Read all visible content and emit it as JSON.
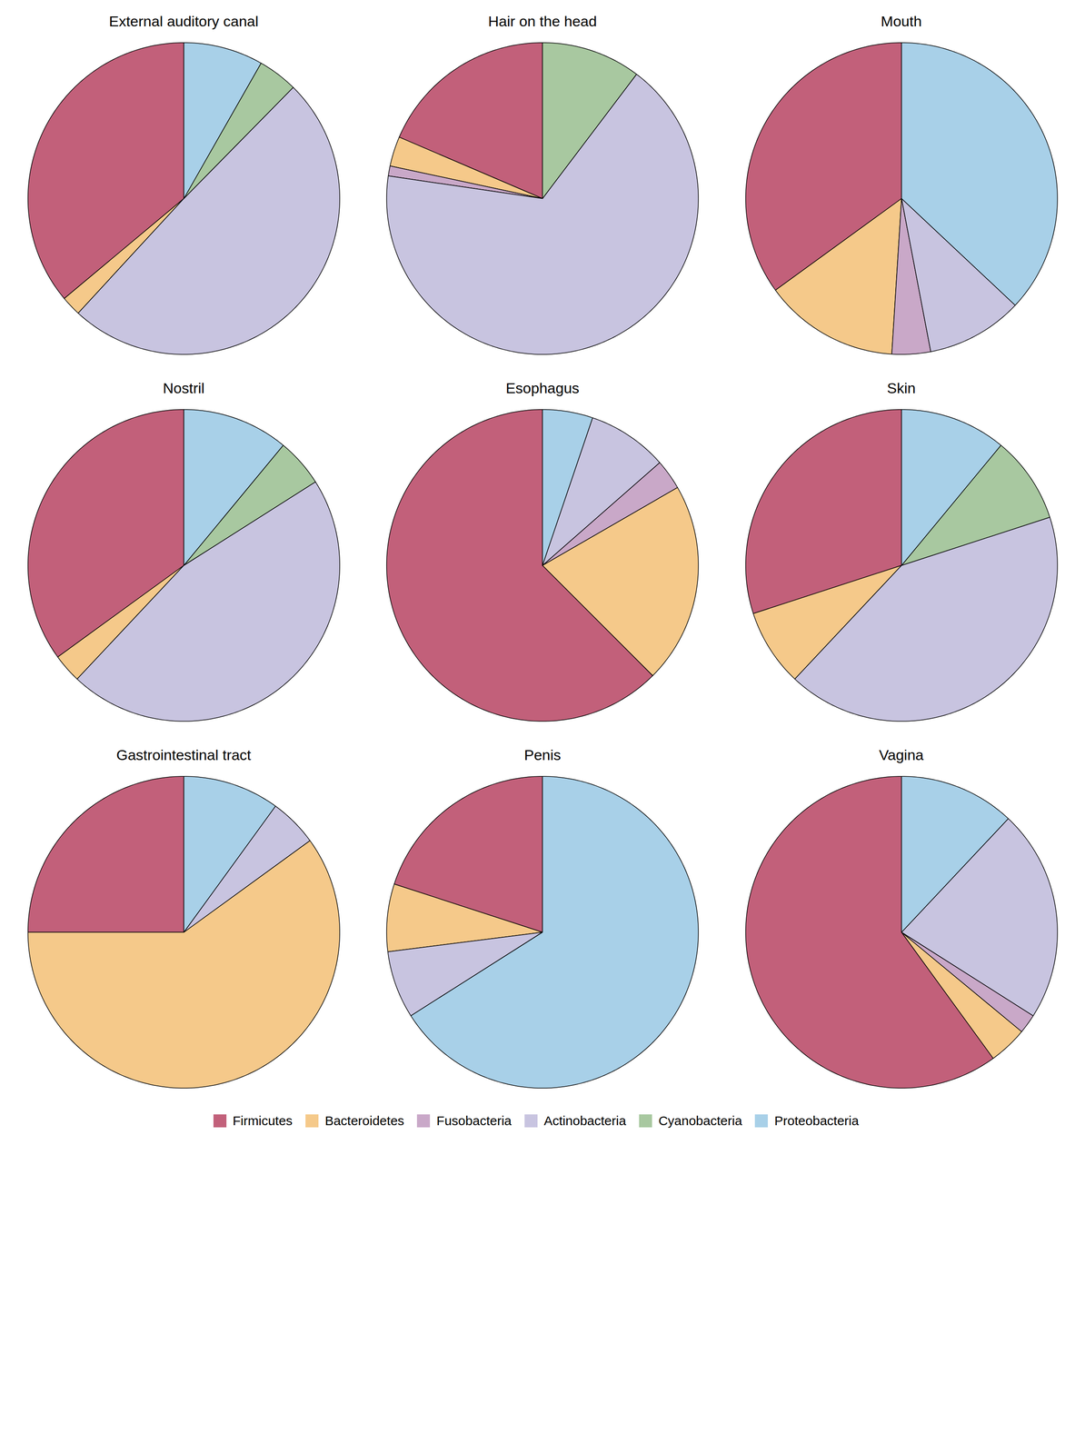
{
  "chart_data": [
    {
      "type": "pie",
      "title": "External auditory canal",
      "categories": [
        "Firmicutes",
        "Bacteroidetes",
        "Fusobacteria",
        "Actinobacteria",
        "Cyanobacteria",
        "Proteobacteria"
      ],
      "values": [
        35,
        2,
        0,
        48,
        4,
        8
      ],
      "colors": [
        "#C2607A",
        "#F5C98A",
        "#C9A8C8",
        "#C8C4E0",
        "#A8C8A0",
        "#A8D0E8"
      ],
      "legend": "bottom"
    },
    {
      "type": "pie",
      "title": "Hair on the head",
      "categories": [
        "Firmicutes",
        "Bacteroidetes",
        "Fusobacteria",
        "Actinobacteria",
        "Cyanobacteria",
        "Proteobacteria"
      ],
      "values": [
        18,
        3,
        1,
        65,
        10,
        0
      ],
      "colors": [
        "#C2607A",
        "#F5C98A",
        "#C9A8C8",
        "#C8C4E0",
        "#A8C8A0",
        "#A8D0E8"
      ],
      "legend": "bottom"
    },
    {
      "type": "pie",
      "title": "Mouth",
      "categories": [
        "Firmicutes",
        "Bacteroidetes",
        "Fusobacteria",
        "Actinobacteria",
        "Cyanobacteria",
        "Proteobacteria"
      ],
      "values": [
        35,
        14,
        4,
        10,
        0,
        37
      ],
      "colors": [
        "#C2607A",
        "#F5C98A",
        "#C9A8C8",
        "#C8C4E0",
        "#A8C8A0",
        "#A8D0E8"
      ],
      "legend": "bottom"
    },
    {
      "type": "pie",
      "title": "Nostril",
      "categories": [
        "Firmicutes",
        "Bacteroidetes",
        "Fusobacteria",
        "Actinobacteria",
        "Cyanobacteria",
        "Proteobacteria"
      ],
      "values": [
        35,
        3,
        0,
        46,
        5,
        11
      ],
      "colors": [
        "#C2607A",
        "#F5C98A",
        "#C9A8C8",
        "#C8C4E0",
        "#A8C8A0",
        "#A8D0E8"
      ],
      "legend": "bottom"
    },
    {
      "type": "pie",
      "title": "Esophagus",
      "categories": [
        "Firmicutes",
        "Bacteroidetes",
        "Fusobacteria",
        "Actinobacteria",
        "Cyanobacteria",
        "Proteobacteria"
      ],
      "values": [
        60,
        20,
        3,
        8,
        0,
        5
      ],
      "colors": [
        "#C2607A",
        "#F5C98A",
        "#C9A8C8",
        "#C8C4E0",
        "#A8C8A0",
        "#A8D0E8"
      ],
      "legend": "bottom"
    },
    {
      "type": "pie",
      "title": "Skin",
      "categories": [
        "Firmicutes",
        "Bacteroidetes",
        "Fusobacteria",
        "Actinobacteria",
        "Cyanobacteria",
        "Proteobacteria"
      ],
      "values": [
        30,
        8,
        0,
        42,
        9,
        11
      ],
      "colors": [
        "#C2607A",
        "#F5C98A",
        "#C9A8C8",
        "#C8C4E0",
        "#A8C8A0",
        "#A8D0E8"
      ],
      "legend": "bottom"
    },
    {
      "type": "pie",
      "title": "Gastrointestinal tract",
      "categories": [
        "Firmicutes",
        "Bacteroidetes",
        "Fusobacteria",
        "Actinobacteria",
        "Cyanobacteria",
        "Proteobacteria"
      ],
      "values": [
        25,
        60,
        0,
        5,
        0,
        10
      ],
      "colors": [
        "#C2607A",
        "#F5C98A",
        "#C9A8C8",
        "#C8C4E0",
        "#A8C8A0",
        "#A8D0E8"
      ],
      "legend": "bottom"
    },
    {
      "type": "pie",
      "title": "Penis",
      "categories": [
        "Firmicutes",
        "Bacteroidetes",
        "Fusobacteria",
        "Actinobacteria",
        "Cyanobacteria",
        "Proteobacteria"
      ],
      "values": [
        20,
        7,
        0,
        7,
        0,
        66
      ],
      "colors": [
        "#C2607A",
        "#F5C98A",
        "#C9A8C8",
        "#C8C4E0",
        "#A8C8A0",
        "#A8D0E8"
      ],
      "legend": "bottom"
    },
    {
      "type": "pie",
      "title": "Vagina",
      "categories": [
        "Firmicutes",
        "Bacteroidetes",
        "Fusobacteria",
        "Actinobacteria",
        "Cyanobacteria",
        "Proteobacteria"
      ],
      "values": [
        60,
        4,
        2,
        22,
        0,
        12
      ],
      "colors": [
        "#C2607A",
        "#F5C98A",
        "#C9A8C8",
        "#C8C4E0",
        "#A8C8A0",
        "#A8D0E8"
      ],
      "legend": "bottom"
    }
  ]
}
